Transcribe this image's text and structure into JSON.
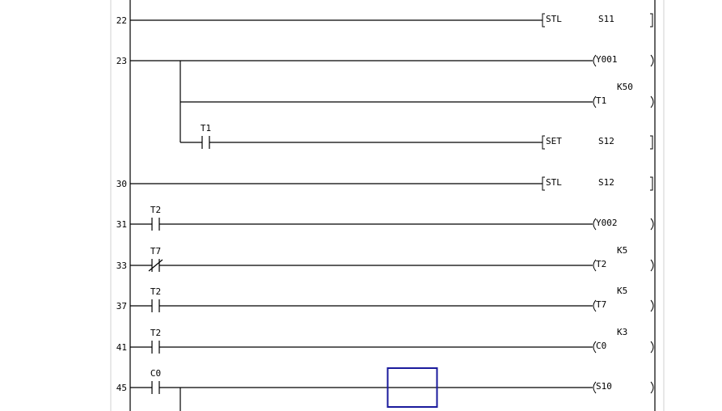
{
  "rungs": [
    {
      "step": "22",
      "contacts": [],
      "output": {
        "kind": "instruction",
        "op": "STL",
        "operand": "S11"
      }
    },
    {
      "step": "23",
      "contacts": [],
      "output": {
        "kind": "coil",
        "operand": "Y001"
      }
    },
    {
      "step": "",
      "branch": true,
      "contacts": [],
      "output": {
        "kind": "coil",
        "operand": "T1",
        "setting": "K50"
      }
    },
    {
      "step": "",
      "branch": true,
      "contacts": [
        {
          "label": "T1",
          "type": "NO"
        }
      ],
      "output": {
        "kind": "instruction",
        "op": "SET",
        "operand": "S12"
      }
    },
    {
      "step": "30",
      "contacts": [],
      "output": {
        "kind": "instruction",
        "op": "STL",
        "operand": "S12"
      }
    },
    {
      "step": "31",
      "contacts": [
        {
          "label": "T2",
          "type": "NO"
        }
      ],
      "output": {
        "kind": "coil",
        "operand": "Y002"
      }
    },
    {
      "step": "33",
      "contacts": [
        {
          "label": "T7",
          "type": "NC"
        }
      ],
      "output": {
        "kind": "coil",
        "operand": "T2",
        "setting": "K5"
      }
    },
    {
      "step": "37",
      "contacts": [
        {
          "label": "T2",
          "type": "NO"
        }
      ],
      "output": {
        "kind": "coil",
        "operand": "T7",
        "setting": "K5"
      }
    },
    {
      "step": "41",
      "contacts": [
        {
          "label": "T2",
          "type": "NO"
        }
      ],
      "output": {
        "kind": "coil",
        "operand": "C0",
        "setting": "K3"
      }
    },
    {
      "step": "45",
      "contacts": [
        {
          "label": "C0",
          "type": "NO"
        }
      ],
      "output": {
        "kind": "coil",
        "operand": "S10"
      }
    }
  ],
  "colors": {
    "cursor": "#1a1a9c",
    "line": "#000000",
    "border": "#d8d8d8"
  }
}
